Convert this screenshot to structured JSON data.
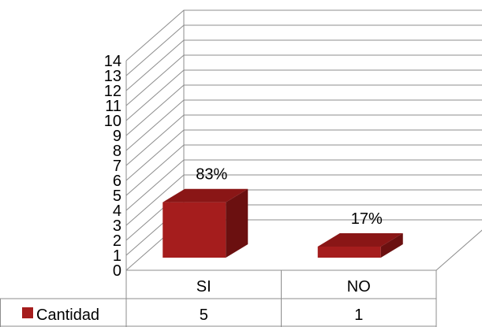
{
  "chart_data": {
    "type": "bar",
    "categories": [
      "SI",
      "NO"
    ],
    "series": [
      {
        "name": "Cantidad",
        "values": [
          5,
          1
        ],
        "color": "#a51d1d"
      }
    ],
    "data_labels": [
      "83%",
      "17%"
    ],
    "ylim": [
      0,
      14
    ],
    "yticks": [
      "0",
      "1",
      "2",
      "3",
      "4",
      "5",
      "6",
      "7",
      "8",
      "9",
      "10",
      "11",
      "12",
      "13",
      "14"
    ],
    "grid": true,
    "legend": "data-table",
    "title": "",
    "xlabel": "",
    "ylabel": ""
  }
}
